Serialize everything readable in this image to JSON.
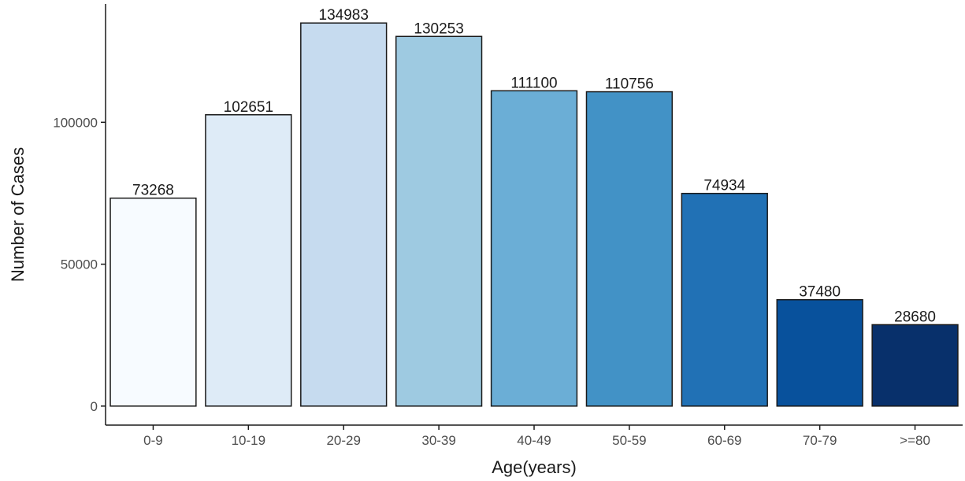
{
  "chart_data": {
    "type": "bar",
    "title": "",
    "xlabel": "Age(years)",
    "ylabel": "Number of Cases",
    "categories": [
      "0-9",
      "10-19",
      "20-29",
      "30-39",
      "40-49",
      "50-59",
      "60-69",
      "70-79",
      ">=80"
    ],
    "values": [
      73268,
      102651,
      134983,
      130253,
      111100,
      110756,
      74934,
      37480,
      28680
    ],
    "data_labels": [
      "73268",
      "102651",
      "134983",
      "130253",
      "111100",
      "110756",
      "74934",
      "37480",
      "28680"
    ],
    "colors": [
      "#f7fbff",
      "#deebf7",
      "#c6dbef",
      "#9ecae1",
      "#6baed6",
      "#4292c6",
      "#2171b5",
      "#08519c",
      "#08306b"
    ],
    "yticks": [
      0,
      50000,
      100000
    ],
    "ytick_labels": [
      "0",
      "50000",
      "100000"
    ],
    "ylim": [
      -6700,
      141700
    ],
    "grid": false,
    "legend": "none"
  }
}
